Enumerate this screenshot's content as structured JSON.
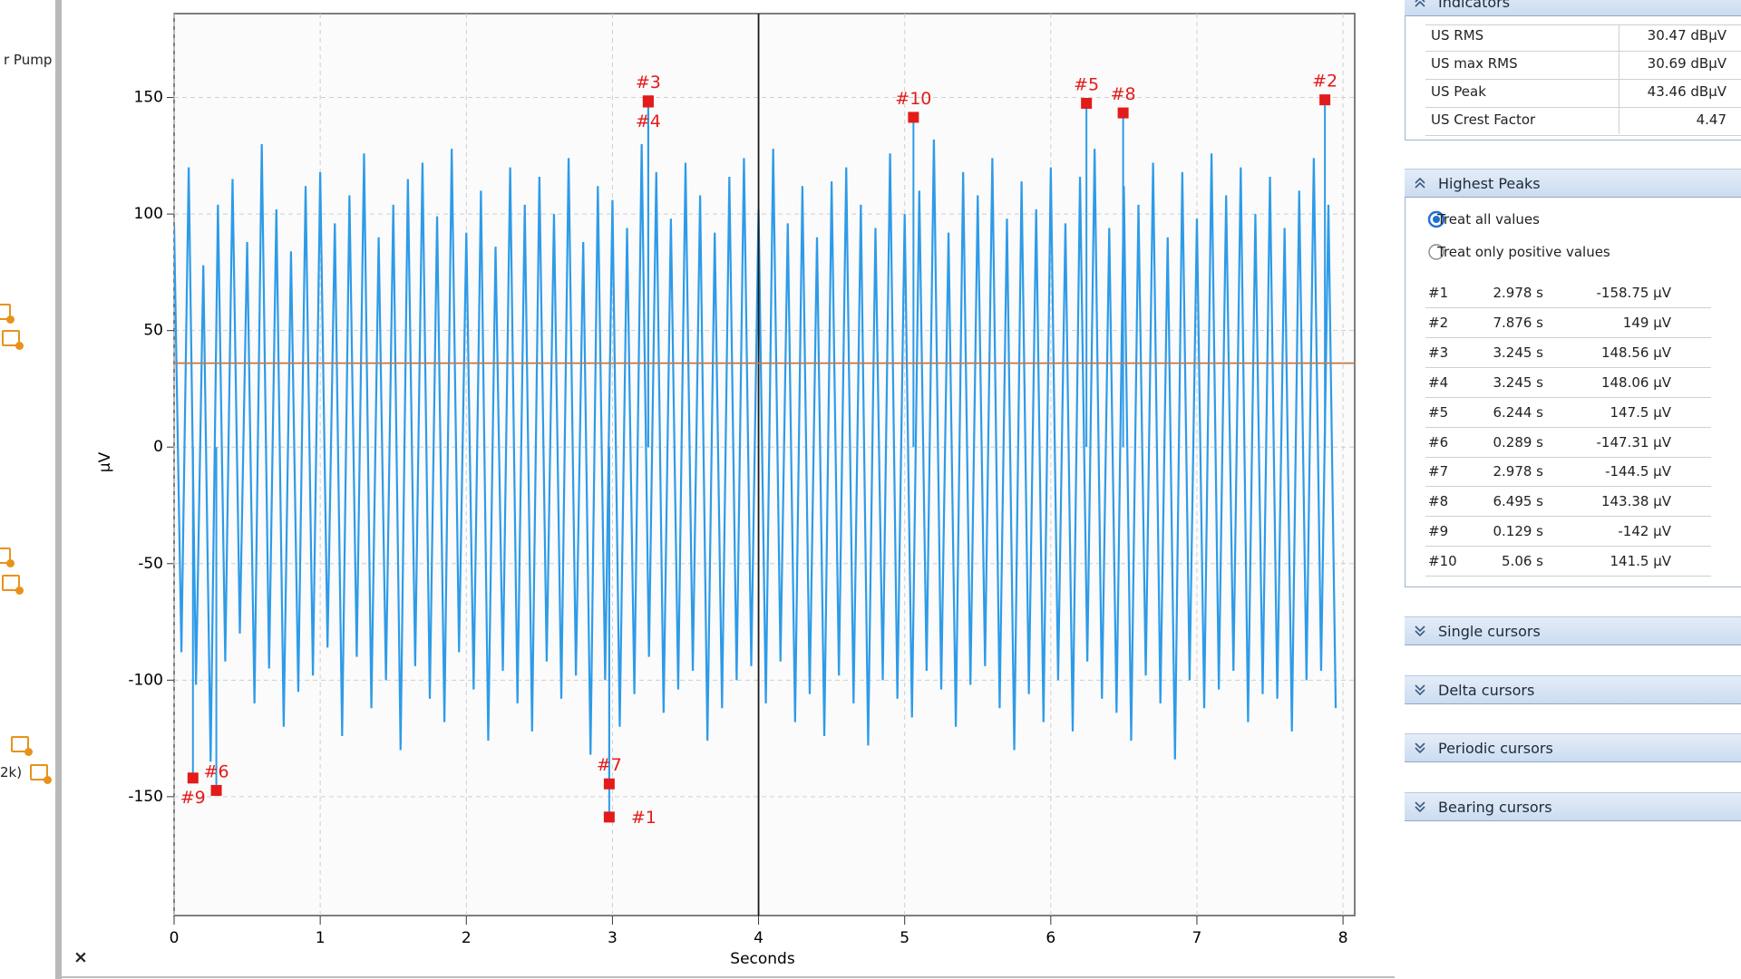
{
  "sidebar": {
    "labels": [
      "r Pump",
      "2k)"
    ]
  },
  "close_label": "×",
  "chart_data": {
    "type": "line",
    "ylabel": "µV",
    "xlabel": "Seconds",
    "xlim": [
      0,
      8.08
    ],
    "ylim": [
      -201,
      186
    ],
    "xticks": [
      0,
      1,
      2,
      3,
      4,
      5,
      6,
      7,
      8
    ],
    "yticks": [
      -150,
      -100,
      -50,
      0,
      50,
      100,
      150
    ],
    "grid": true,
    "series": [
      {
        "color": "#2e9be8",
        "x": [
          0,
          0.05,
          0.1,
          0.15,
          0.2,
          0.25,
          0.3,
          0.35,
          0.4,
          0.45,
          0.5,
          0.55,
          0.6,
          0.65,
          0.7,
          0.75,
          0.8,
          0.85,
          0.9,
          0.95,
          1,
          1.05,
          1.1,
          1.15,
          1.2,
          1.25,
          1.3,
          1.35,
          1.4,
          1.45,
          1.5,
          1.55,
          1.6,
          1.65,
          1.7,
          1.75,
          1.8,
          1.85,
          1.9,
          1.95,
          2,
          2.05,
          2.1,
          2.15,
          2.2,
          2.25,
          2.3,
          2.35,
          2.4,
          2.45,
          2.5,
          2.55,
          2.6,
          2.65,
          2.7,
          2.75,
          2.8,
          2.85,
          2.9,
          2.95,
          3,
          3.05,
          3.1,
          3.15,
          3.2,
          3.25,
          3.3,
          3.35,
          3.4,
          3.45,
          3.5,
          3.55,
          3.6,
          3.65,
          3.7,
          3.75,
          3.8,
          3.85,
          3.9,
          3.95,
          4,
          4.05,
          4.1,
          4.15,
          4.2,
          4.25,
          4.3,
          4.35,
          4.4,
          4.45,
          4.5,
          4.55,
          4.6,
          4.65,
          4.7,
          4.75,
          4.8,
          4.85,
          4.9,
          4.95,
          5,
          5.05,
          5.1,
          5.15,
          5.2,
          5.25,
          5.3,
          5.35,
          5.4,
          5.45,
          5.5,
          5.55,
          5.6,
          5.65,
          5.7,
          5.75,
          5.8,
          5.85,
          5.9,
          5.95,
          6,
          6.05,
          6.1,
          6.15,
          6.2,
          6.25,
          6.3,
          6.35,
          6.4,
          6.45,
          6.5,
          6.55,
          6.6,
          6.65,
          6.7,
          6.75,
          6.8,
          6.85,
          6.9,
          6.95,
          7,
          7.05,
          7.1,
          7.15,
          7.2,
          7.25,
          7.3,
          7.35,
          7.4,
          7.45,
          7.5,
          7.55,
          7.6,
          7.65,
          7.7,
          7.75,
          7.8,
          7.85,
          7.9,
          7.95
        ],
        "values": [
          95,
          -88,
          120,
          -102,
          78,
          -135,
          104,
          -92,
          115,
          -80,
          88,
          -110,
          130,
          -95,
          102,
          -120,
          84,
          -105,
          112,
          -98,
          118,
          -86,
          96,
          -124,
          108,
          -90,
          126,
          -112,
          90,
          -100,
          104,
          -130,
          115,
          -94,
          122,
          -108,
          99,
          -118,
          128,
          -88,
          92,
          -104,
          110,
          -126,
          86,
          -96,
          120,
          -110,
          104,
          -122,
          116,
          -92,
          100,
          -108,
          124,
          -98,
          88,
          -132,
          112,
          -100,
          106,
          -120,
          94,
          -106,
          130,
          -90,
          118,
          -114,
          98,
          -104,
          122,
          -96,
          108,
          -126,
          92,
          -112,
          116,
          -100,
          124,
          -94,
          102,
          -110,
          128,
          -92,
          96,
          -118,
          112,
          -106,
          90,
          -124,
          114,
          -98,
          120,
          -110,
          104,
          -128,
          94,
          -100,
          126,
          -108,
          100,
          -116,
          110,
          -96,
          132,
          -104,
          92,
          -120,
          118,
          -102,
          108,
          -94,
          124,
          -112,
          98,
          -130,
          114,
          -106,
          102,
          -118,
          120,
          -100,
          96,
          -122,
          116,
          -92,
          128,
          -108,
          94,
          -114,
          112,
          -126,
          104,
          -98,
          122,
          -110,
          90,
          -134,
          118,
          -100,
          98,
          -112,
          126,
          -104,
          108,
          -96,
          120,
          -118,
          100,
          -106,
          116,
          -108,
          94,
          -122,
          110,
          -100,
          124,
          -96,
          104,
          -112
        ]
      }
    ],
    "peaks": {
      "color": "#e31b1b",
      "labels": [
        "#1",
        "#2",
        "#3",
        "#4",
        "#5",
        "#6",
        "#7",
        "#8",
        "#9",
        "#10"
      ],
      "x": [
        2.978,
        7.876,
        3.245,
        3.245,
        6.244,
        0.289,
        2.978,
        6.495,
        0.129,
        5.06
      ],
      "values": [
        -158.75,
        149,
        148.56,
        148.06,
        147.5,
        -147.31,
        -144.5,
        143.38,
        -142,
        141.5
      ]
    },
    "cursors": {
      "x": 4,
      "y": 36,
      "x_color": "#1a1a1a",
      "y_color": "#c07a4a"
    }
  },
  "panel": {
    "indicators": {
      "title": "Indicators",
      "rows": [
        [
          "US RMS",
          "30.47 dBµV"
        ],
        [
          "US max RMS",
          "30.69 dBµV"
        ],
        [
          "US Peak",
          "43.46 dBµV"
        ],
        [
          "US Crest Factor",
          "4.47"
        ]
      ]
    },
    "highest_peaks": {
      "title": "Highest Peaks",
      "options": [
        {
          "label": "Treat all values",
          "checked": true
        },
        {
          "label": "Treat only positive values",
          "checked": false
        }
      ],
      "rows": [
        [
          "#1",
          "2.978 s",
          "-158.75 µV"
        ],
        [
          "#2",
          "7.876 s",
          "149 µV"
        ],
        [
          "#3",
          "3.245 s",
          "148.56 µV"
        ],
        [
          "#4",
          "3.245 s",
          "148.06 µV"
        ],
        [
          "#5",
          "6.244 s",
          "147.5 µV"
        ],
        [
          "#6",
          "0.289 s",
          "-147.31 µV"
        ],
        [
          "#7",
          "2.978 s",
          "-144.5 µV"
        ],
        [
          "#8",
          "6.495 s",
          "143.38 µV"
        ],
        [
          "#9",
          "0.129 s",
          "-142 µV"
        ],
        [
          "#10",
          "5.06 s",
          "141.5 µV"
        ]
      ]
    },
    "sections": [
      "Single cursors",
      "Delta cursors",
      "Periodic cursors",
      "Bearing cursors"
    ]
  }
}
